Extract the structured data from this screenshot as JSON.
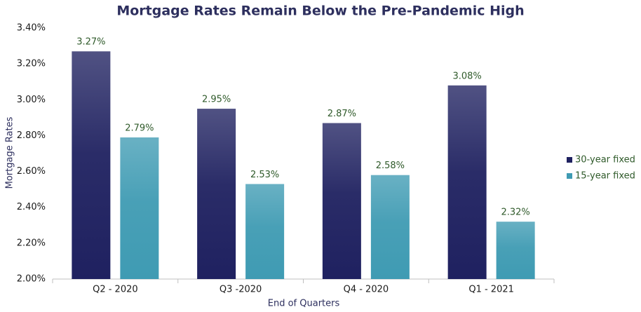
{
  "chart_data": {
    "type": "bar",
    "title": "Mortgage Rates Remain Below the Pre-Pandemic High",
    "x_label": "End of Quarters",
    "y_label": "Mortgage Rates",
    "categories": [
      "Q2 - 2020",
      "Q3 -2020",
      "Q4 - 2020",
      "Q1 - 2021"
    ],
    "series": [
      {
        "name": "30-year fixed",
        "color": "#1f2160",
        "values": [
          3.27,
          2.95,
          2.87,
          3.08
        ],
        "value_labels": [
          "3.27%",
          "2.95%",
          "2.87%",
          "3.08%"
        ]
      },
      {
        "name": "15-year fixed",
        "color": "#3f9bb3",
        "values": [
          2.79,
          2.53,
          2.58,
          2.32
        ],
        "value_labels": [
          "2.79%",
          "2.53%",
          "2.58%",
          "2.32%"
        ]
      }
    ],
    "ylim": [
      2.0,
      3.4
    ],
    "yticks": [
      {
        "value": 2.0,
        "label": "2.00%"
      },
      {
        "value": 2.2,
        "label": "2.20%"
      },
      {
        "value": 2.4,
        "label": "2.40%"
      },
      {
        "value": 2.6,
        "label": "2.60%"
      },
      {
        "value": 2.8,
        "label": "2.80%"
      },
      {
        "value": 3.0,
        "label": "3.00%"
      },
      {
        "value": 3.2,
        "label": "3.20%"
      },
      {
        "value": 3.4,
        "label": "3.40%"
      }
    ],
    "grid": false,
    "legend": "right"
  }
}
